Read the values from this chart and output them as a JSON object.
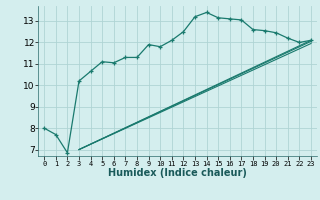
{
  "xlabel": "Humidex (Indice chaleur)",
  "bg_color": "#d4eeee",
  "grid_color": "#afd4d4",
  "line_color": "#1a7a6e",
  "xlim": [
    -0.5,
    23.5
  ],
  "ylim": [
    6.7,
    13.7
  ],
  "yticks": [
    7,
    8,
    9,
    10,
    11,
    12,
    13
  ],
  "xticks": [
    0,
    1,
    2,
    3,
    4,
    5,
    6,
    7,
    8,
    9,
    10,
    11,
    12,
    13,
    14,
    15,
    16,
    17,
    18,
    19,
    20,
    21,
    22,
    23
  ],
  "curve_x": [
    0,
    1,
    2,
    3,
    4,
    5,
    6,
    7,
    8,
    9,
    10,
    11,
    12,
    13,
    14,
    15,
    16,
    17,
    18,
    19,
    20,
    21,
    22,
    23
  ],
  "curve_y": [
    8.0,
    7.7,
    6.85,
    10.2,
    10.65,
    11.1,
    11.05,
    11.3,
    11.3,
    11.9,
    11.8,
    12.1,
    12.5,
    13.2,
    13.4,
    13.15,
    13.1,
    13.05,
    12.6,
    12.55,
    12.45,
    12.2,
    12.0,
    12.1
  ],
  "line1_x": [
    3,
    23
  ],
  "line1_y": [
    7.0,
    12.1
  ],
  "line2_x": [
    3,
    23
  ],
  "line2_y": [
    7.0,
    12.05
  ],
  "line3_x": [
    3,
    23
  ],
  "line3_y": [
    7.0,
    11.95
  ]
}
